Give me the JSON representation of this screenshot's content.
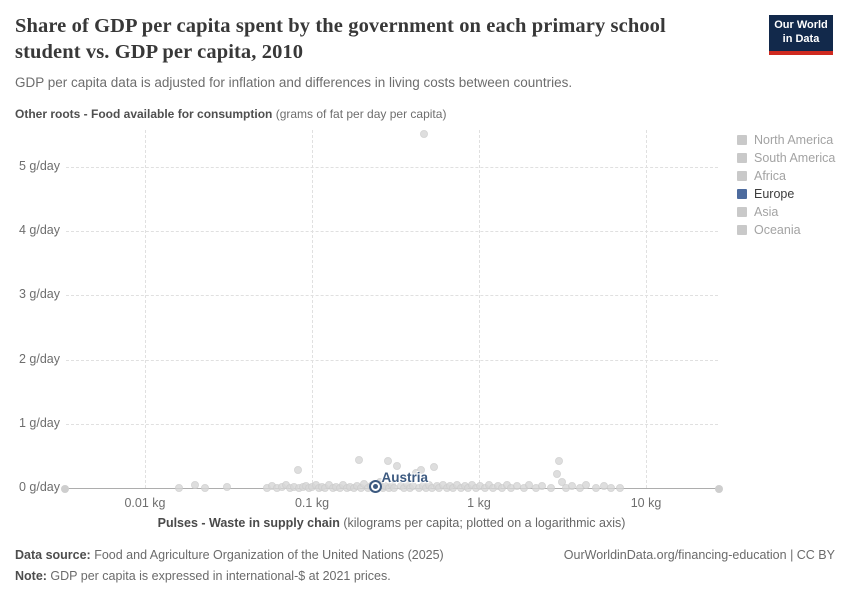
{
  "header": {
    "title": "Share of GDP per capita spent by the government on each primary school student vs. GDP per capita, 2010",
    "subtitle": "GDP per capita data is adjusted for inflation and differences in living costs between countries.",
    "logo": {
      "line1": "Our World",
      "line2": "in Data",
      "bg_color": "#12294b",
      "accent_color": "#cf2a20"
    }
  },
  "chart_data": {
    "type": "scatter",
    "title": "Share of GDP per capita spent by the government on each primary school student vs. GDP per capita, 2010",
    "ylabel": {
      "bold": "Other roots - Food available for consumption",
      "rest": " (grams of fat per day per capita)"
    },
    "xlabel": {
      "bold": "Pulses - Waste in supply chain",
      "rest": " (kilograms per capita; plotted on a logarithmic axis)"
    },
    "x_axis": {
      "scale": "log",
      "unit": "kg",
      "range_kg": [
        0.0033,
        27
      ],
      "ticks": [
        {
          "value": 0.01,
          "label": "0.01 kg"
        },
        {
          "value": 0.1,
          "label": "0.1 kg"
        },
        {
          "value": 1,
          "label": "1 kg"
        },
        {
          "value": 10,
          "label": "10 kg"
        }
      ]
    },
    "y_axis": {
      "unit": "g/day",
      "range": [
        0,
        5.6
      ],
      "grid": true,
      "ticks": [
        {
          "value": 0,
          "label": "0 g/day"
        },
        {
          "value": 1,
          "label": "1 g/day"
        },
        {
          "value": 2,
          "label": "2 g/day"
        },
        {
          "value": 3,
          "label": "3 g/day"
        },
        {
          "value": 4,
          "label": "4 g/day"
        },
        {
          "value": 5,
          "label": "5 g/day"
        }
      ]
    },
    "legend": {
      "position": "right",
      "items": [
        {
          "label": "North America",
          "color": "#c9c9c9",
          "active": false
        },
        {
          "label": "South America",
          "color": "#c9c9c9",
          "active": false
        },
        {
          "label": "Africa",
          "color": "#c9c9c9",
          "active": false
        },
        {
          "label": "Europe",
          "color": "#4d6b9e",
          "active": true
        },
        {
          "label": "Asia",
          "color": "#c9c9c9",
          "active": false
        },
        {
          "label": "Oceania",
          "color": "#c9c9c9",
          "active": false
        }
      ]
    },
    "series": [
      {
        "name": "countries",
        "color": "#d7d7d7",
        "points": [
          [
            0.016,
            0
          ],
          [
            0.02,
            0.04
          ],
          [
            0.023,
            0
          ],
          [
            0.031,
            0.02
          ],
          [
            0.054,
            0
          ],
          [
            0.058,
            0.03
          ],
          [
            0.062,
            0
          ],
          [
            0.066,
            0.01
          ],
          [
            0.07,
            0.04
          ],
          [
            0.074,
            0
          ],
          [
            0.078,
            0.02
          ],
          [
            0.082,
            0.28
          ],
          [
            0.084,
            0
          ],
          [
            0.088,
            0.01
          ],
          [
            0.092,
            0.03
          ],
          [
            0.096,
            0
          ],
          [
            0.1,
            0.02
          ],
          [
            0.105,
            0.05
          ],
          [
            0.11,
            0
          ],
          [
            0.115,
            0.02
          ],
          [
            0.12,
            0
          ],
          [
            0.127,
            0.04
          ],
          [
            0.133,
            0
          ],
          [
            0.14,
            0.02
          ],
          [
            0.147,
            0
          ],
          [
            0.154,
            0.05
          ],
          [
            0.162,
            0
          ],
          [
            0.17,
            0.02
          ],
          [
            0.178,
            0
          ],
          [
            0.187,
            0.03
          ],
          [
            0.19,
            0.43
          ],
          [
            0.196,
            0
          ],
          [
            0.205,
            0.06
          ],
          [
            0.215,
            0
          ],
          [
            0.225,
            0.03
          ],
          [
            0.235,
            0
          ],
          [
            0.245,
            0.05
          ],
          [
            0.255,
            0.1
          ],
          [
            0.265,
            0
          ],
          [
            0.275,
            0.03
          ],
          [
            0.285,
            0.42
          ],
          [
            0.29,
            0
          ],
          [
            0.3,
            0.05
          ],
          [
            0.31,
            0
          ],
          [
            0.325,
            0.34
          ],
          [
            0.34,
            0.03
          ],
          [
            0.355,
            0
          ],
          [
            0.37,
            0.06
          ],
          [
            0.385,
            0
          ],
          [
            0.4,
            0.03
          ],
          [
            0.42,
            0.23
          ],
          [
            0.435,
            0
          ],
          [
            0.45,
            0.28
          ],
          [
            0.465,
            0.03
          ],
          [
            0.47,
            5.51
          ],
          [
            0.48,
            0
          ],
          [
            0.5,
            0.05
          ],
          [
            0.52,
            0
          ],
          [
            0.54,
            0.33
          ],
          [
            0.56,
            0.03
          ],
          [
            0.58,
            0
          ],
          [
            0.61,
            0.05
          ],
          [
            0.64,
            0
          ],
          [
            0.67,
            0.03
          ],
          [
            0.7,
            0
          ],
          [
            0.74,
            0.05
          ],
          [
            0.78,
            0
          ],
          [
            0.82,
            0.03
          ],
          [
            0.86,
            0
          ],
          [
            0.91,
            0.05
          ],
          [
            0.96,
            0
          ],
          [
            1.02,
            0.03
          ],
          [
            1.08,
            0
          ],
          [
            1.15,
            0.05
          ],
          [
            1.22,
            0
          ],
          [
            1.3,
            0.03
          ],
          [
            1.38,
            0
          ],
          [
            1.47,
            0.05
          ],
          [
            1.56,
            0
          ],
          [
            1.7,
            0.03
          ],
          [
            1.85,
            0
          ],
          [
            2.0,
            0.05
          ],
          [
            2.2,
            0
          ],
          [
            2.4,
            0.03
          ],
          [
            2.7,
            0
          ],
          [
            2.95,
            0.22
          ],
          [
            3.0,
            0.42
          ],
          [
            3.15,
            0.09
          ],
          [
            3.3,
            0
          ],
          [
            3.6,
            0.03
          ],
          [
            4.0,
            0
          ],
          [
            4.4,
            0.05
          ],
          [
            5.0,
            0
          ],
          [
            5.6,
            0.03
          ],
          [
            6.2,
            0
          ],
          [
            7.0,
            0
          ]
        ]
      }
    ],
    "highlight": {
      "label": "Austria",
      "x": 0.24,
      "y": 0.02,
      "color": "#3d5a80"
    }
  },
  "footer": {
    "datasource_label": "Data source:",
    "datasource_text": " Food and Agriculture Organization of the United Nations (2025)",
    "link": "OurWorldinData.org/financing-education | CC BY",
    "note_label": "Note:",
    "note_text": " GDP per capita is expressed in international-$ at 2021 prices."
  }
}
